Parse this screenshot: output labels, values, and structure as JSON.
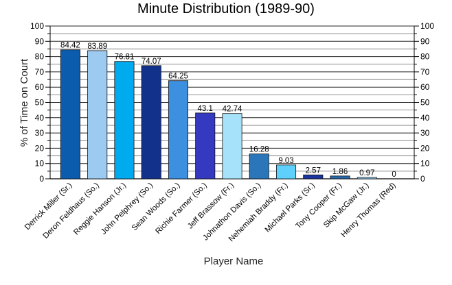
{
  "chart_data": {
    "type": "bar",
    "title": "Minute Distribution (1989-90)",
    "xlabel": "Player Name",
    "ylabel": "% of Time on Court",
    "ylim": [
      0,
      100
    ],
    "yticks": [
      0,
      10,
      20,
      30,
      40,
      50,
      60,
      70,
      80,
      90,
      100
    ],
    "grid": true,
    "categories": [
      "Derrick Miller (Sr.)",
      "Deron Feldhaus (So.)",
      "Reggie Hanson (Jr.)",
      "John Pelphrey (So.)",
      "Sean Woods (So.)",
      "Richie Farmer (So.)",
      "Jeff Brassow (Fr.)",
      "Johnathon Davis (So.)",
      "Nehemiah Braddy (Fr.)",
      "Michael Parks (Sr.)",
      "Tony Cooper (Fr.)",
      "Skip McGaw (Jr.)",
      "Henry Thomas (Red)"
    ],
    "values": [
      84.42,
      83.89,
      76.81,
      74.07,
      64.25,
      43.1,
      42.74,
      16.28,
      9.03,
      2.57,
      1.86,
      0.97,
      0
    ],
    "value_labels": [
      "84.42",
      "83.89",
      "76.81",
      "74.07",
      "64.25",
      "43.1",
      "42.74",
      "16.28",
      "9.03",
      "2.57",
      "1.86",
      "0.97",
      "0"
    ],
    "colors": [
      "#0b5cad",
      "#9ccaf0",
      "#00aaee",
      "#12318a",
      "#3d8fe0",
      "#3539c0",
      "#a6e3fa",
      "#2a76b8",
      "#5ed0fb",
      "#1a34a0",
      "#2868a8",
      "#95cdf3",
      "#16409a"
    ]
  }
}
